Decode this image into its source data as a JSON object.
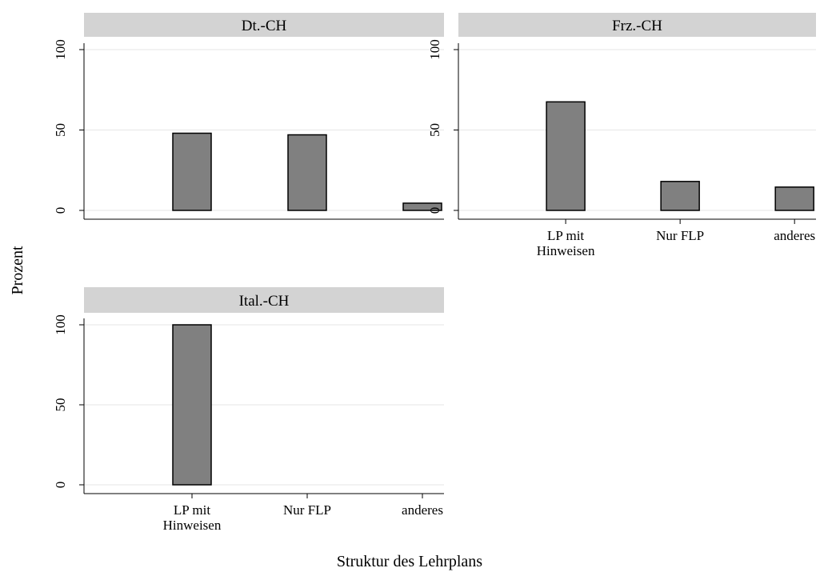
{
  "chart_data": {
    "type": "bar",
    "ylabel": "Prozent",
    "xlabel": "Struktur des Lehrplans",
    "categories": [
      "LP mit\nHinweisen",
      "Nur FLP",
      "anderes"
    ],
    "ylim": [
      0,
      100
    ],
    "yticks": [
      0,
      50,
      100
    ],
    "grid": true,
    "colors": {
      "bar_fill": "#808080",
      "bar_stroke": "#000000",
      "header_fill": "#d3d3d3",
      "grid": "#e6e6e6"
    },
    "panels": [
      {
        "title": "Dt.-CH",
        "values": [
          48,
          47,
          4.5
        ],
        "show_x_labels": false
      },
      {
        "title": "Frz.-CH",
        "values": [
          67.5,
          18,
          14.5
        ],
        "show_x_labels": true
      },
      {
        "title": "Ital.-CH",
        "values": [
          100,
          0,
          0
        ],
        "show_x_labels": true
      }
    ]
  }
}
